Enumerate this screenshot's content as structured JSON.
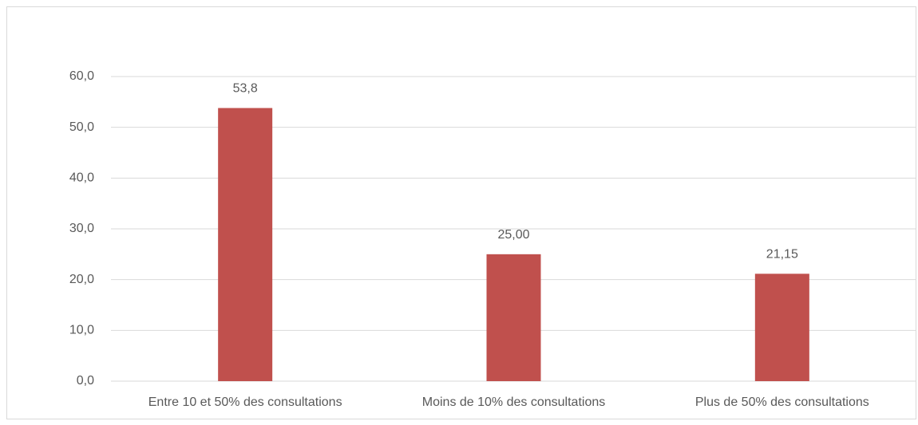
{
  "chart_data": {
    "type": "bar",
    "categories": [
      "Entre 10 et 50% des consultations",
      "Moins de 10% des consultations",
      "Plus de 50% des consultations"
    ],
    "values": [
      53.8,
      25,
      21.15
    ],
    "value_labels": [
      "53,8",
      "25,00",
      "21,15"
    ],
    "color": "#c0504d",
    "ylim": [
      0,
      60
    ],
    "yticks": [
      {
        "value": 0,
        "label": "0,0"
      },
      {
        "value": 10,
        "label": "10,0"
      },
      {
        "value": 20,
        "label": "20,0"
      },
      {
        "value": 30,
        "label": "30,0"
      },
      {
        "value": 40,
        "label": "40,0"
      },
      {
        "value": 50,
        "label": "50,0"
      },
      {
        "value": 60,
        "label": "60,0"
      }
    ],
    "grid": true
  }
}
